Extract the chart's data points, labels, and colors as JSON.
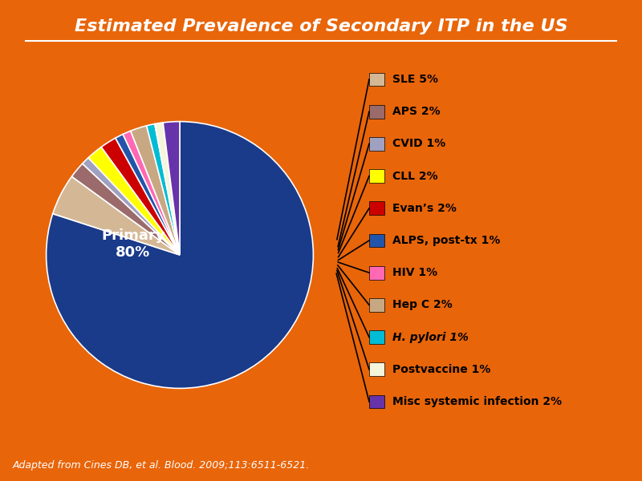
{
  "title": "Estimated Prevalence of Secondary ITP in the US",
  "background_color": "#E8650A",
  "values": [
    80,
    5,
    2,
    1,
    2,
    2,
    1,
    1,
    2,
    1,
    1,
    2
  ],
  "colors": [
    "#1a3a8a",
    "#d4b896",
    "#9b6b6b",
    "#a0a0c0",
    "#ffff00",
    "#cc0000",
    "#2255aa",
    "#ff69b4",
    "#c8a882",
    "#00bcd4",
    "#f5f5dc",
    "#6633aa"
  ],
  "secondary_colors": [
    "#d4b896",
    "#9b6b6b",
    "#a0a0c0",
    "#ffff00",
    "#cc0000",
    "#2255aa",
    "#ff69b4",
    "#c8a882",
    "#00bcd4",
    "#f5f5dc",
    "#6633aa"
  ],
  "legend_labels": [
    "SLE 5%",
    "APS 2%",
    "CVID 1%",
    "CLL 2%",
    "Evan’s 2%",
    "ALPS, post-tx 1%",
    "HIV 1%",
    "Hep C 2%",
    "H. pylori 1%",
    "Postvaccine 1%",
    "Misc systemic infection 2%"
  ],
  "legend_italic": [
    false,
    false,
    false,
    false,
    false,
    false,
    false,
    false,
    true,
    false,
    false
  ],
  "footer": "Adapted from Cines DB, et al. Blood. 2009;113:6511-6521.",
  "primary_label": "Primary\n80%"
}
